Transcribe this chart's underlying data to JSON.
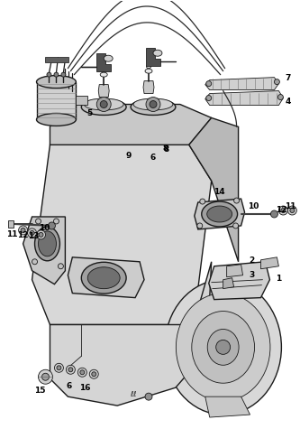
{
  "background_color": "#ffffff",
  "figure_width": 3.33,
  "figure_height": 4.75,
  "dpi": 100,
  "line_color": "#1a1a1a",
  "gray_light": "#e0e0e0",
  "gray_mid": "#b0b0b0",
  "gray_dark": "#707070",
  "wire_color": "#2a2a2a",
  "label_color": "#000000",
  "label_fs": 6.5,
  "label_bold_fs": 6.0
}
